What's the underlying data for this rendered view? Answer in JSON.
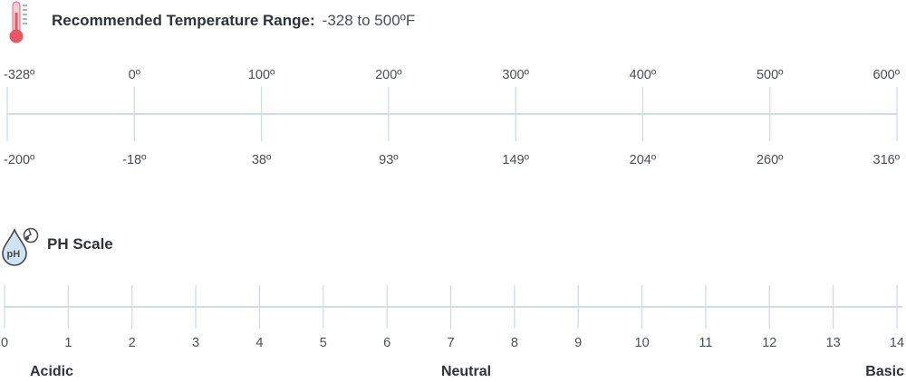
{
  "temperature": {
    "title": "Recommended Temperature Range:",
    "value_text": "-328 to 500ºF",
    "icon": "thermometer-icon"
  },
  "ph": {
    "title": "PH Scale",
    "icon": "ph-drop-icon",
    "icon_text": "pH"
  },
  "chart_data": [
    {
      "type": "range-scale",
      "title": "Recommended Temperature Range:",
      "unit": "ºF",
      "axis_top_ticks": [
        "-328º",
        "0º",
        "100º",
        "200º",
        "300º",
        "400º",
        "500º",
        "600º"
      ],
      "axis_bottom_ticks": [
        "-200º",
        "-18º",
        "38º",
        "93º",
        "149º",
        "204º",
        "260º",
        "316º"
      ],
      "range": {
        "min": -328,
        "max": 500
      },
      "colors": {
        "start": "#1ec0ea",
        "end": "#f23a24",
        "track": "#cfdde6"
      }
    },
    {
      "type": "range-scale",
      "title": "PH Scale",
      "ticks": [
        0,
        1,
        2,
        3,
        4,
        5,
        6,
        7,
        8,
        9,
        10,
        11,
        12,
        13,
        14
      ],
      "range": {
        "min": 0,
        "max": 14
      },
      "categories": [
        "Acidic",
        "Neutral",
        "Basic"
      ],
      "colors": [
        "#f23a24",
        "#f3a23c",
        "#f4c43f",
        "#a8c84a",
        "#4fb86a",
        "#22aa7a",
        "#2fb6b0",
        "#36b8d9",
        "#4a9dd6",
        "#7a6cc4",
        "#b24a9e"
      ]
    }
  ]
}
